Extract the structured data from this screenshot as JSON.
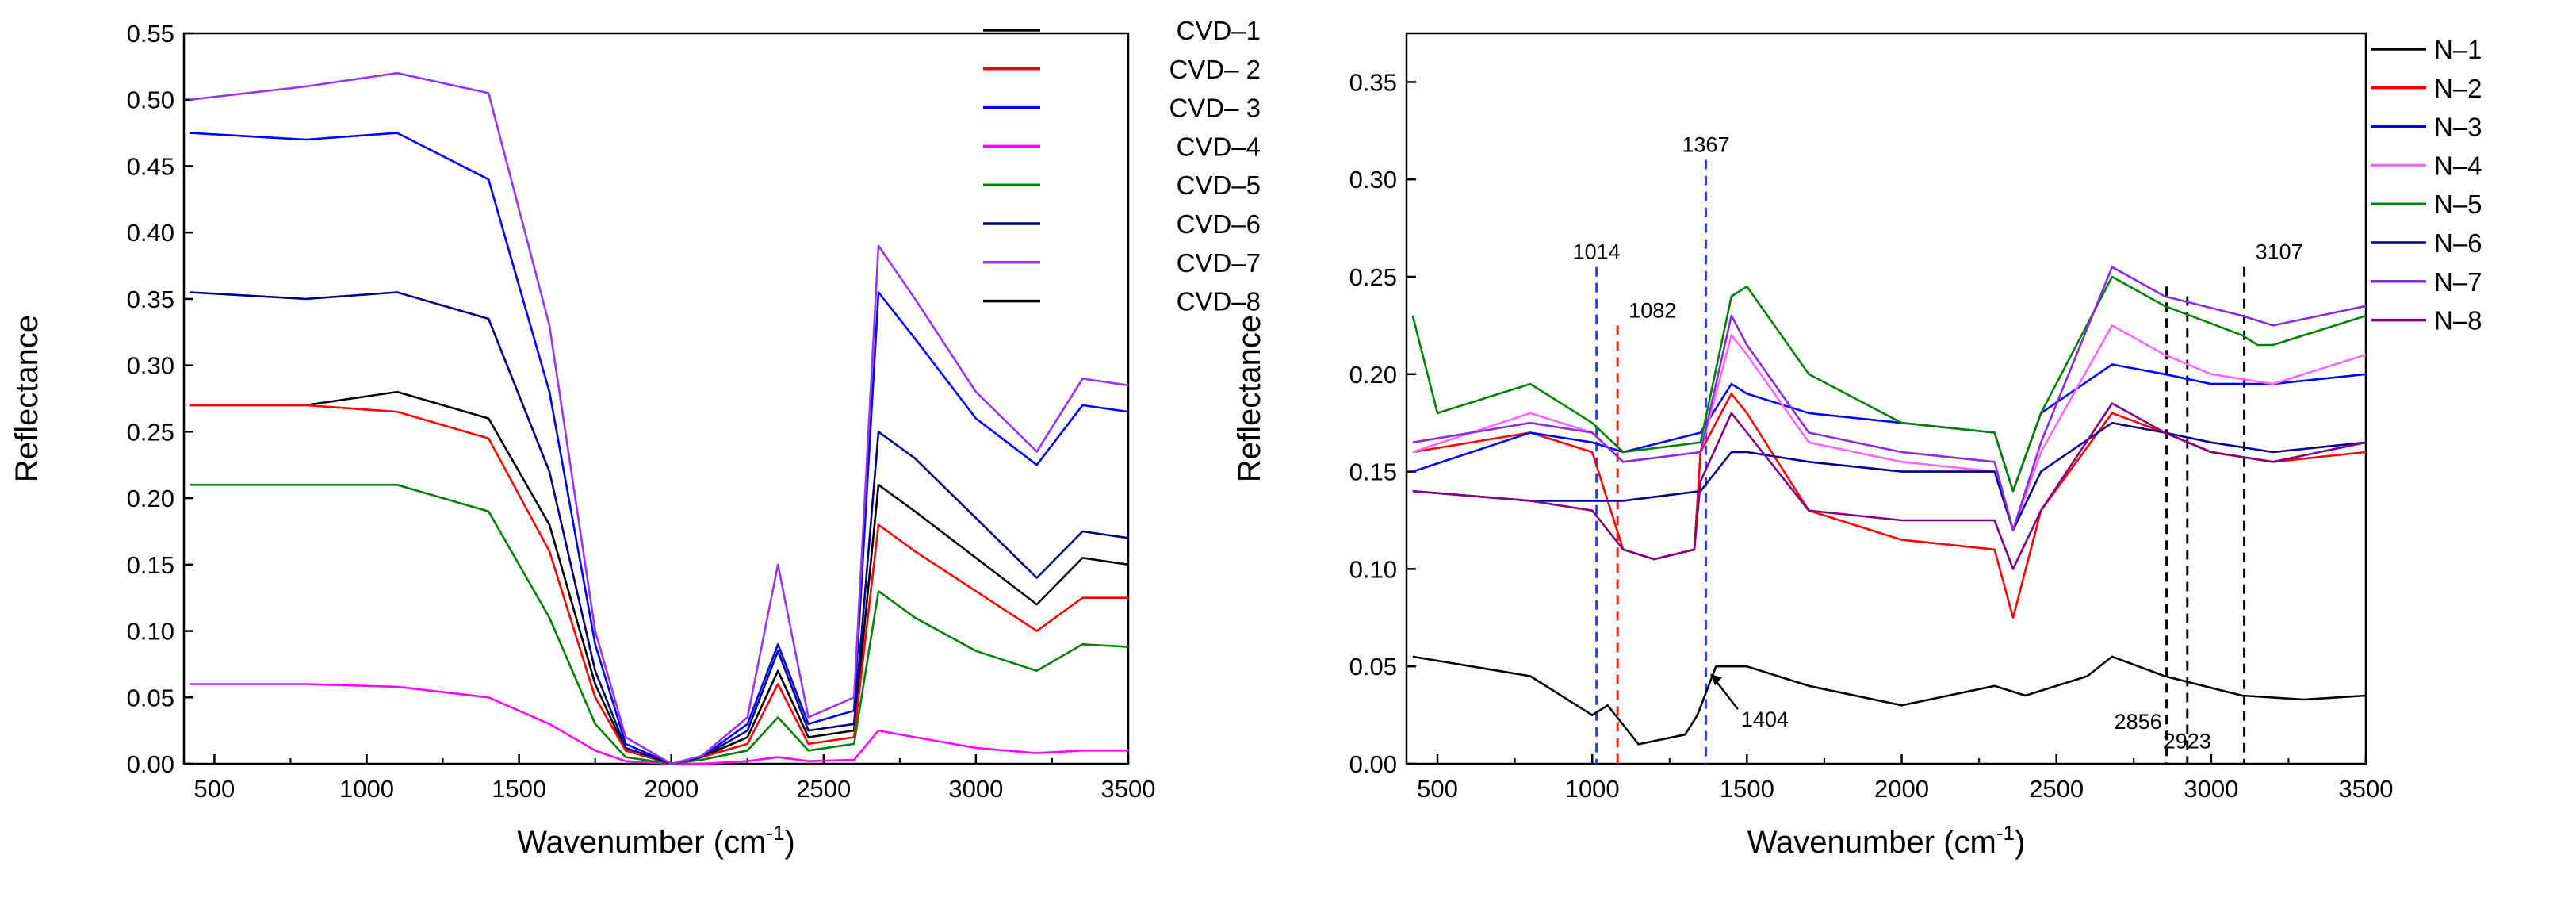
{
  "chart_data": [
    {
      "type": "line",
      "xlabel": "Wavenumber (cm",
      "xlabel_sup": "-1",
      "xlabel_close": ")",
      "ylabel": "Reflectance",
      "xlim": [
        400,
        3500
      ],
      "ylim": [
        0,
        0.55
      ],
      "xticks": [
        500,
        1000,
        1500,
        2000,
        2500,
        3000,
        3500
      ],
      "xtick_labels": [
        "500",
        "1000",
        "1500",
        "2000",
        "2500",
        "3000",
        "3500"
      ],
      "yticks": [
        0,
        0.05,
        0.1,
        0.15,
        0.2,
        0.25,
        0.3,
        0.35,
        0.4,
        0.45,
        0.5,
        0.55
      ],
      "ytick_labels": [
        "0.00",
        "0.05",
        "0.10",
        "0.15",
        "0.20",
        "0.25",
        "0.30",
        "0.35",
        "0.40",
        "0.45",
        "0.50",
        "0.55"
      ],
      "grid": false,
      "legend_position": "top-right",
      "series": [
        {
          "name": "CVD–1",
          "color": "#000000",
          "x": [
            420,
            800,
            1100,
            1400,
            1600,
            1750,
            1850,
            2000,
            2100,
            2250,
            2350,
            2450,
            2600,
            2680,
            2800,
            3000,
            3200,
            3350,
            3500
          ],
          "y": [
            0.27,
            0.27,
            0.28,
            0.26,
            0.18,
            0.06,
            0.01,
            0.0,
            0.005,
            0.02,
            0.07,
            0.02,
            0.025,
            0.21,
            0.19,
            0.155,
            0.12,
            0.155,
            0.15
          ]
        },
        {
          "name": "CVD– 2",
          "color": "#ff0000",
          "x": [
            420,
            800,
            1100,
            1400,
            1600,
            1750,
            1850,
            2000,
            2100,
            2250,
            2350,
            2450,
            2600,
            2680,
            2800,
            3000,
            3200,
            3350,
            3500
          ],
          "y": [
            0.27,
            0.27,
            0.265,
            0.245,
            0.16,
            0.05,
            0.01,
            0.0,
            0.005,
            0.015,
            0.06,
            0.015,
            0.02,
            0.18,
            0.16,
            0.13,
            0.1,
            0.125,
            0.125
          ]
        },
        {
          "name": "CVD– 3",
          "color": "#0000ff",
          "x": [
            420,
            800,
            1100,
            1400,
            1600,
            1750,
            1850,
            2000,
            2100,
            2250,
            2350,
            2450,
            2600,
            2680,
            2800,
            3000,
            3200,
            3350,
            3500
          ],
          "y": [
            0.475,
            0.47,
            0.475,
            0.44,
            0.28,
            0.09,
            0.015,
            0.0,
            0.005,
            0.03,
            0.09,
            0.03,
            0.04,
            0.355,
            0.32,
            0.26,
            0.225,
            0.27,
            0.265
          ]
        },
        {
          "name": "CVD–4",
          "color": "#ff00ff",
          "x": [
            420,
            800,
            1100,
            1400,
            1600,
            1750,
            1850,
            2000,
            2100,
            2250,
            2350,
            2450,
            2600,
            2680,
            2800,
            3000,
            3200,
            3350,
            3500
          ],
          "y": [
            0.06,
            0.06,
            0.058,
            0.05,
            0.03,
            0.01,
            0.002,
            0.0,
            0.0,
            0.002,
            0.005,
            0.002,
            0.003,
            0.025,
            0.02,
            0.012,
            0.008,
            0.01,
            0.01
          ]
        },
        {
          "name": "CVD–5",
          "color": "#008000",
          "x": [
            420,
            800,
            1100,
            1400,
            1600,
            1750,
            1850,
            2000,
            2100,
            2250,
            2350,
            2450,
            2600,
            2680,
            2800,
            3000,
            3200,
            3350,
            3500
          ],
          "y": [
            0.21,
            0.21,
            0.21,
            0.19,
            0.11,
            0.03,
            0.005,
            0.0,
            0.003,
            0.01,
            0.035,
            0.01,
            0.015,
            0.13,
            0.11,
            0.085,
            0.07,
            0.09,
            0.088
          ]
        },
        {
          "name": "CVD–6",
          "color": "#000080",
          "x": [
            420,
            800,
            1100,
            1400,
            1600,
            1750,
            1850,
            2000,
            2100,
            2250,
            2350,
            2450,
            2600,
            2680,
            2800,
            3000,
            3200,
            3350,
            3500
          ],
          "y": [
            0.355,
            0.35,
            0.355,
            0.335,
            0.22,
            0.07,
            0.012,
            0.0,
            0.005,
            0.025,
            0.085,
            0.025,
            0.03,
            0.25,
            0.23,
            0.185,
            0.14,
            0.175,
            0.17
          ]
        },
        {
          "name": "CVD–7",
          "color": "#9933ff",
          "x": [
            420,
            800,
            1100,
            1400,
            1600,
            1750,
            1850,
            2000,
            2100,
            2250,
            2350,
            2450,
            2600,
            2680,
            2800,
            3000,
            3200,
            3350,
            3500
          ],
          "y": [
            0.5,
            0.51,
            0.52,
            0.505,
            0.33,
            0.1,
            0.02,
            0.0,
            0.006,
            0.035,
            0.15,
            0.035,
            0.05,
            0.39,
            0.35,
            0.28,
            0.235,
            0.29,
            0.285
          ]
        },
        {
          "name": "CVD–8",
          "color": "#000000",
          "x": [],
          "y": []
        }
      ]
    },
    {
      "type": "line",
      "xlabel": "Wavenumber (cm",
      "xlabel_sup": "-1",
      "xlabel_close": ")",
      "ylabel": "Reflectance",
      "xlim": [
        400,
        3500
      ],
      "ylim": [
        0,
        0.375
      ],
      "xticks": [
        500,
        1000,
        1500,
        2000,
        2500,
        3000,
        3500
      ],
      "xtick_labels": [
        "500",
        "1000",
        "1500",
        "2000",
        "2500",
        "3000",
        "3500"
      ],
      "yticks": [
        0,
        0.05,
        0.1,
        0.15,
        0.2,
        0.25,
        0.3,
        0.35
      ],
      "ytick_labels": [
        "0.00",
        "0.05",
        "0.10",
        "0.15",
        "0.20",
        "0.25",
        "0.30",
        "0.35"
      ],
      "grid": false,
      "legend_position": "top-right",
      "series": [
        {
          "name": "N–1",
          "color": "#000000",
          "x": [
            420,
            800,
            1000,
            1050,
            1150,
            1300,
            1340,
            1400,
            1500,
            1700,
            2000,
            2300,
            2400,
            2600,
            2680,
            2850,
            3100,
            3300,
            3500
          ],
          "y": [
            0.055,
            0.045,
            0.025,
            0.03,
            0.01,
            0.015,
            0.025,
            0.05,
            0.05,
            0.04,
            0.03,
            0.04,
            0.035,
            0.045,
            0.055,
            0.045,
            0.035,
            0.033,
            0.035
          ]
        },
        {
          "name": "N–2",
          "color": "#ff0000",
          "x": [
            420,
            800,
            1000,
            1100,
            1200,
            1330,
            1350,
            1450,
            1500,
            1700,
            2000,
            2300,
            2360,
            2450,
            2680,
            2850,
            3000,
            3200,
            3500
          ],
          "y": [
            0.16,
            0.17,
            0.16,
            0.11,
            0.105,
            0.11,
            0.16,
            0.19,
            0.18,
            0.13,
            0.115,
            0.11,
            0.075,
            0.13,
            0.18,
            0.17,
            0.16,
            0.155,
            0.16
          ]
        },
        {
          "name": "N–3",
          "color": "#0000ff",
          "x": [
            420,
            800,
            1000,
            1100,
            1350,
            1450,
            1500,
            1700,
            2000,
            2300,
            2360,
            2450,
            2680,
            2850,
            3000,
            3200,
            3500
          ],
          "y": [
            0.15,
            0.17,
            0.165,
            0.16,
            0.17,
            0.195,
            0.19,
            0.18,
            0.175,
            0.17,
            0.14,
            0.18,
            0.205,
            0.2,
            0.195,
            0.195,
            0.2
          ]
        },
        {
          "name": "N–4",
          "color": "#ff66ff",
          "x": [
            420,
            800,
            1000,
            1100,
            1350,
            1450,
            1500,
            1700,
            2000,
            2300,
            2360,
            2450,
            2680,
            2850,
            3000,
            3200,
            3500
          ],
          "y": [
            0.16,
            0.18,
            0.17,
            0.155,
            0.16,
            0.22,
            0.21,
            0.165,
            0.155,
            0.15,
            0.12,
            0.16,
            0.225,
            0.21,
            0.2,
            0.195,
            0.21
          ]
        },
        {
          "name": "N–5",
          "color": "#008000",
          "x": [
            420,
            500,
            800,
            1000,
            1100,
            1350,
            1450,
            1500,
            1700,
            2000,
            2300,
            2360,
            2450,
            2680,
            2850,
            3100,
            3150,
            3200,
            3500
          ],
          "y": [
            0.23,
            0.18,
            0.195,
            0.175,
            0.16,
            0.165,
            0.24,
            0.245,
            0.2,
            0.175,
            0.17,
            0.14,
            0.18,
            0.25,
            0.235,
            0.22,
            0.215,
            0.215,
            0.23
          ]
        },
        {
          "name": "N–6",
          "color": "#00008b",
          "x": [
            420,
            800,
            1000,
            1100,
            1350,
            1450,
            1500,
            1700,
            2000,
            2300,
            2360,
            2450,
            2680,
            2850,
            3000,
            3200,
            3500
          ],
          "y": [
            0.14,
            0.135,
            0.135,
            0.135,
            0.14,
            0.16,
            0.16,
            0.155,
            0.15,
            0.15,
            0.12,
            0.15,
            0.175,
            0.17,
            0.165,
            0.16,
            0.165
          ]
        },
        {
          "name": "N–7",
          "color": "#8a2be2",
          "x": [
            420,
            800,
            1000,
            1100,
            1350,
            1450,
            1500,
            1700,
            2000,
            2300,
            2360,
            2450,
            2680,
            2850,
            3100,
            3200,
            3500
          ],
          "y": [
            0.165,
            0.175,
            0.17,
            0.155,
            0.16,
            0.23,
            0.215,
            0.17,
            0.16,
            0.155,
            0.12,
            0.165,
            0.255,
            0.24,
            0.23,
            0.225,
            0.235
          ]
        },
        {
          "name": "N–8",
          "color": "#800080",
          "x": [
            420,
            800,
            1000,
            1100,
            1200,
            1330,
            1350,
            1450,
            1500,
            1700,
            2000,
            2300,
            2360,
            2450,
            2680,
            2850,
            3000,
            3200,
            3500
          ],
          "y": [
            0.14,
            0.135,
            0.13,
            0.11,
            0.105,
            0.11,
            0.145,
            0.18,
            0.17,
            0.13,
            0.125,
            0.125,
            0.1,
            0.13,
            0.185,
            0.17,
            0.16,
            0.155,
            0.165
          ]
        }
      ],
      "reference_lines": [
        {
          "x": 1014,
          "label": "1014",
          "color": "#1f3fff",
          "y_top": 0.255
        },
        {
          "x": 1082,
          "label": "1082",
          "color": "#ff2020",
          "y_top": 0.225
        },
        {
          "x": 1367,
          "label": "1367",
          "color": "#1f3fff",
          "y_top": 0.31
        },
        {
          "x": 2856,
          "label": "2856",
          "color": "#000000",
          "y_top": 0.245
        },
        {
          "x": 2923,
          "label": "2923",
          "color": "#000000",
          "y_top": 0.24
        },
        {
          "x": 3107,
          "label": "3107",
          "color": "#000000",
          "y_top": 0.255
        }
      ],
      "arrow_annotation": {
        "label": "1404",
        "x": 1404,
        "y": 0.05
      }
    }
  ]
}
